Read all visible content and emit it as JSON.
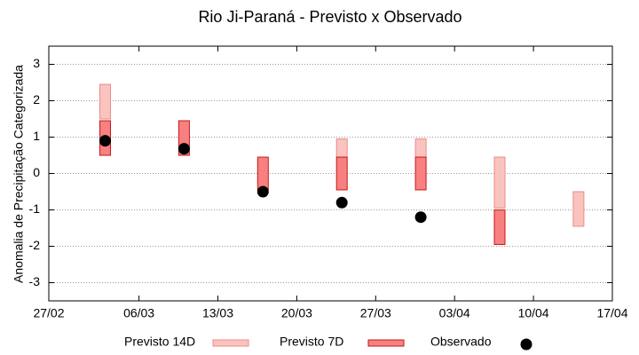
{
  "chart_data": {
    "type": "floating-bar",
    "title": "Rio Ji-Paraná - Previsto x Observado",
    "ylabel": "Anomalia de Precipitação Categorizada",
    "x": [
      "03/03",
      "10/03",
      "17/03",
      "24/03",
      "31/03",
      "07/04",
      "14/04"
    ],
    "xlim": [
      "27/02",
      "17/04"
    ],
    "xticks": [
      "27/02",
      "06/03",
      "13/03",
      "20/03",
      "27/03",
      "03/04",
      "10/04",
      "17/04"
    ],
    "ylim": [
      -3.5,
      3.5
    ],
    "yticks": [
      -3,
      -2,
      -1,
      0,
      1,
      2,
      3
    ],
    "grid": true,
    "series": [
      {
        "name": "Previsto 14D",
        "kind": "range",
        "color": "#f9c4bf",
        "edge": "#ee8a84",
        "low": [
          1.5,
          null,
          null,
          0.45,
          0.45,
          -0.95,
          -1.45
        ],
        "high": [
          2.45,
          null,
          null,
          0.95,
          0.95,
          0.45,
          -0.5
        ]
      },
      {
        "name": "Previsto 7D",
        "kind": "range",
        "color": "#f88080",
        "edge": "#c41a1a",
        "low": [
          0.5,
          0.5,
          -0.45,
          -0.45,
          -0.45,
          -1.95,
          null
        ],
        "high": [
          1.45,
          1.45,
          0.45,
          0.45,
          0.45,
          -1.0,
          null
        ]
      },
      {
        "name": "Observado",
        "kind": "point",
        "color": "#000000",
        "values": [
          0.9,
          0.68,
          -0.5,
          -0.8,
          -1.2,
          null,
          null
        ]
      }
    ]
  }
}
